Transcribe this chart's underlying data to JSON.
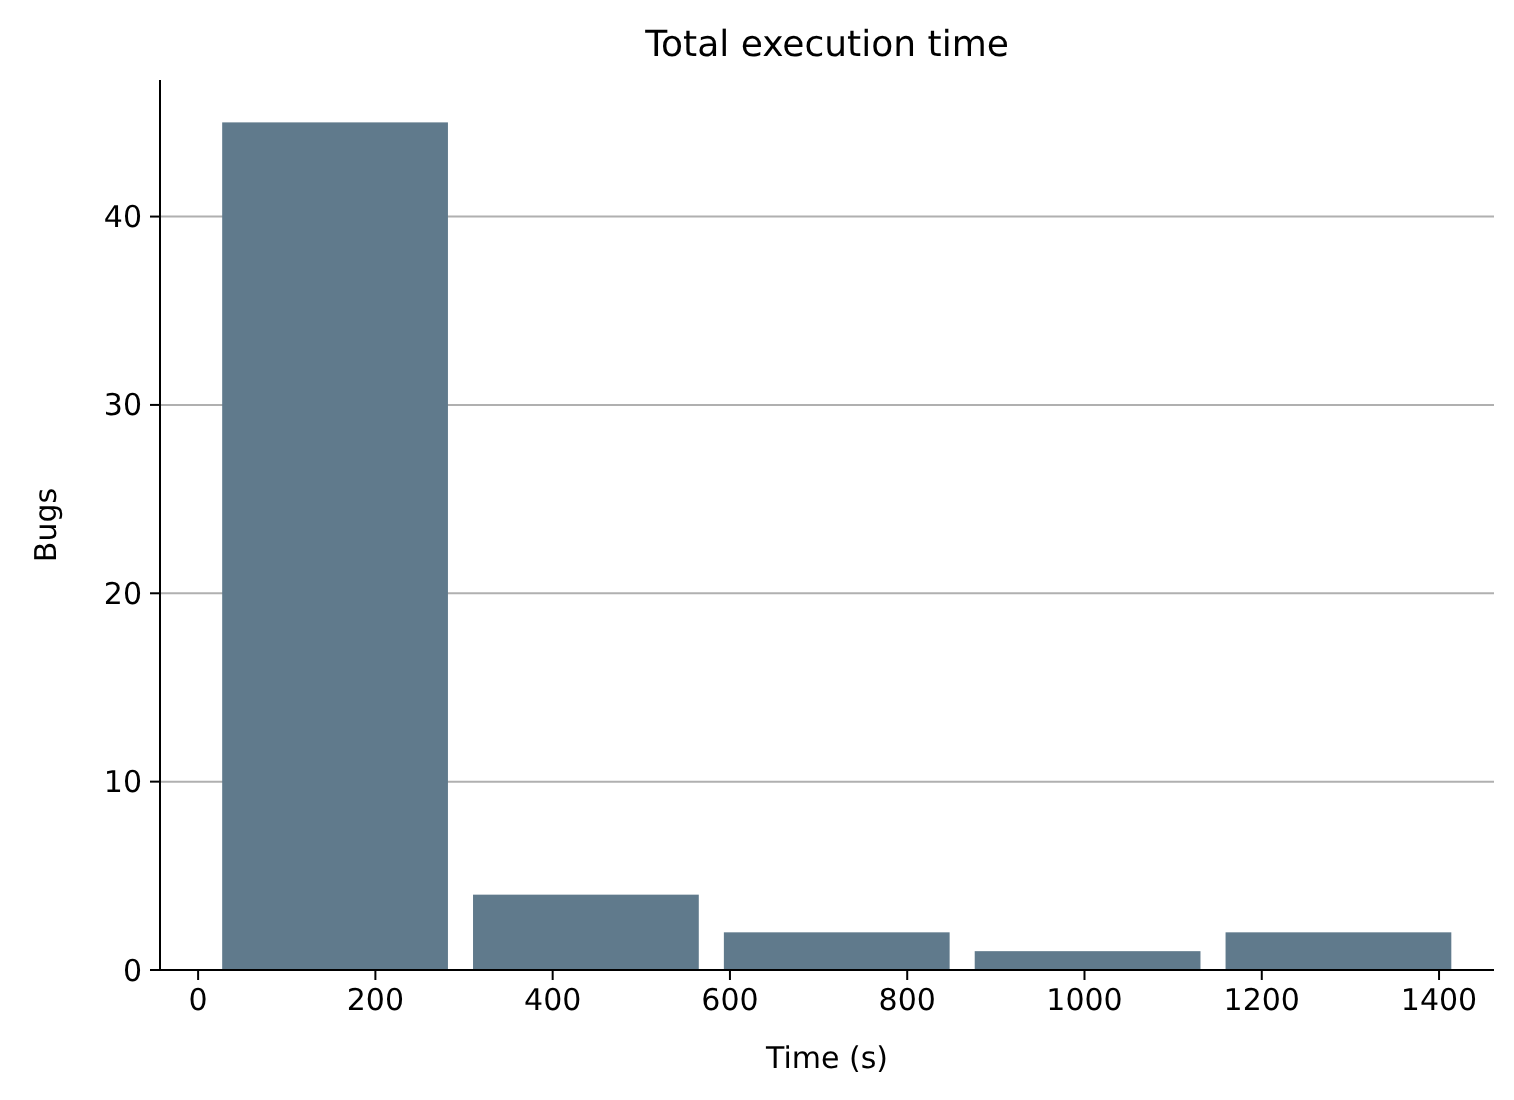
{
  "chart_data": {
    "type": "histogram",
    "title": "Total execution time",
    "xlabel": "Time (s)",
    "ylabel": "Bugs",
    "bins": [
      13,
      296,
      579,
      862,
      1145,
      1428
    ],
    "values": [
      45,
      4,
      2,
      1,
      2
    ],
    "color": "#607a8c",
    "xlim": [
      -43,
      1462
    ],
    "xticks": [
      0,
      200,
      400,
      600,
      800,
      1000,
      1200,
      1400
    ],
    "ylim": [
      0,
      47.25
    ],
    "yticks": [
      0,
      10,
      20,
      30,
      40
    ],
    "grid": "y"
  }
}
